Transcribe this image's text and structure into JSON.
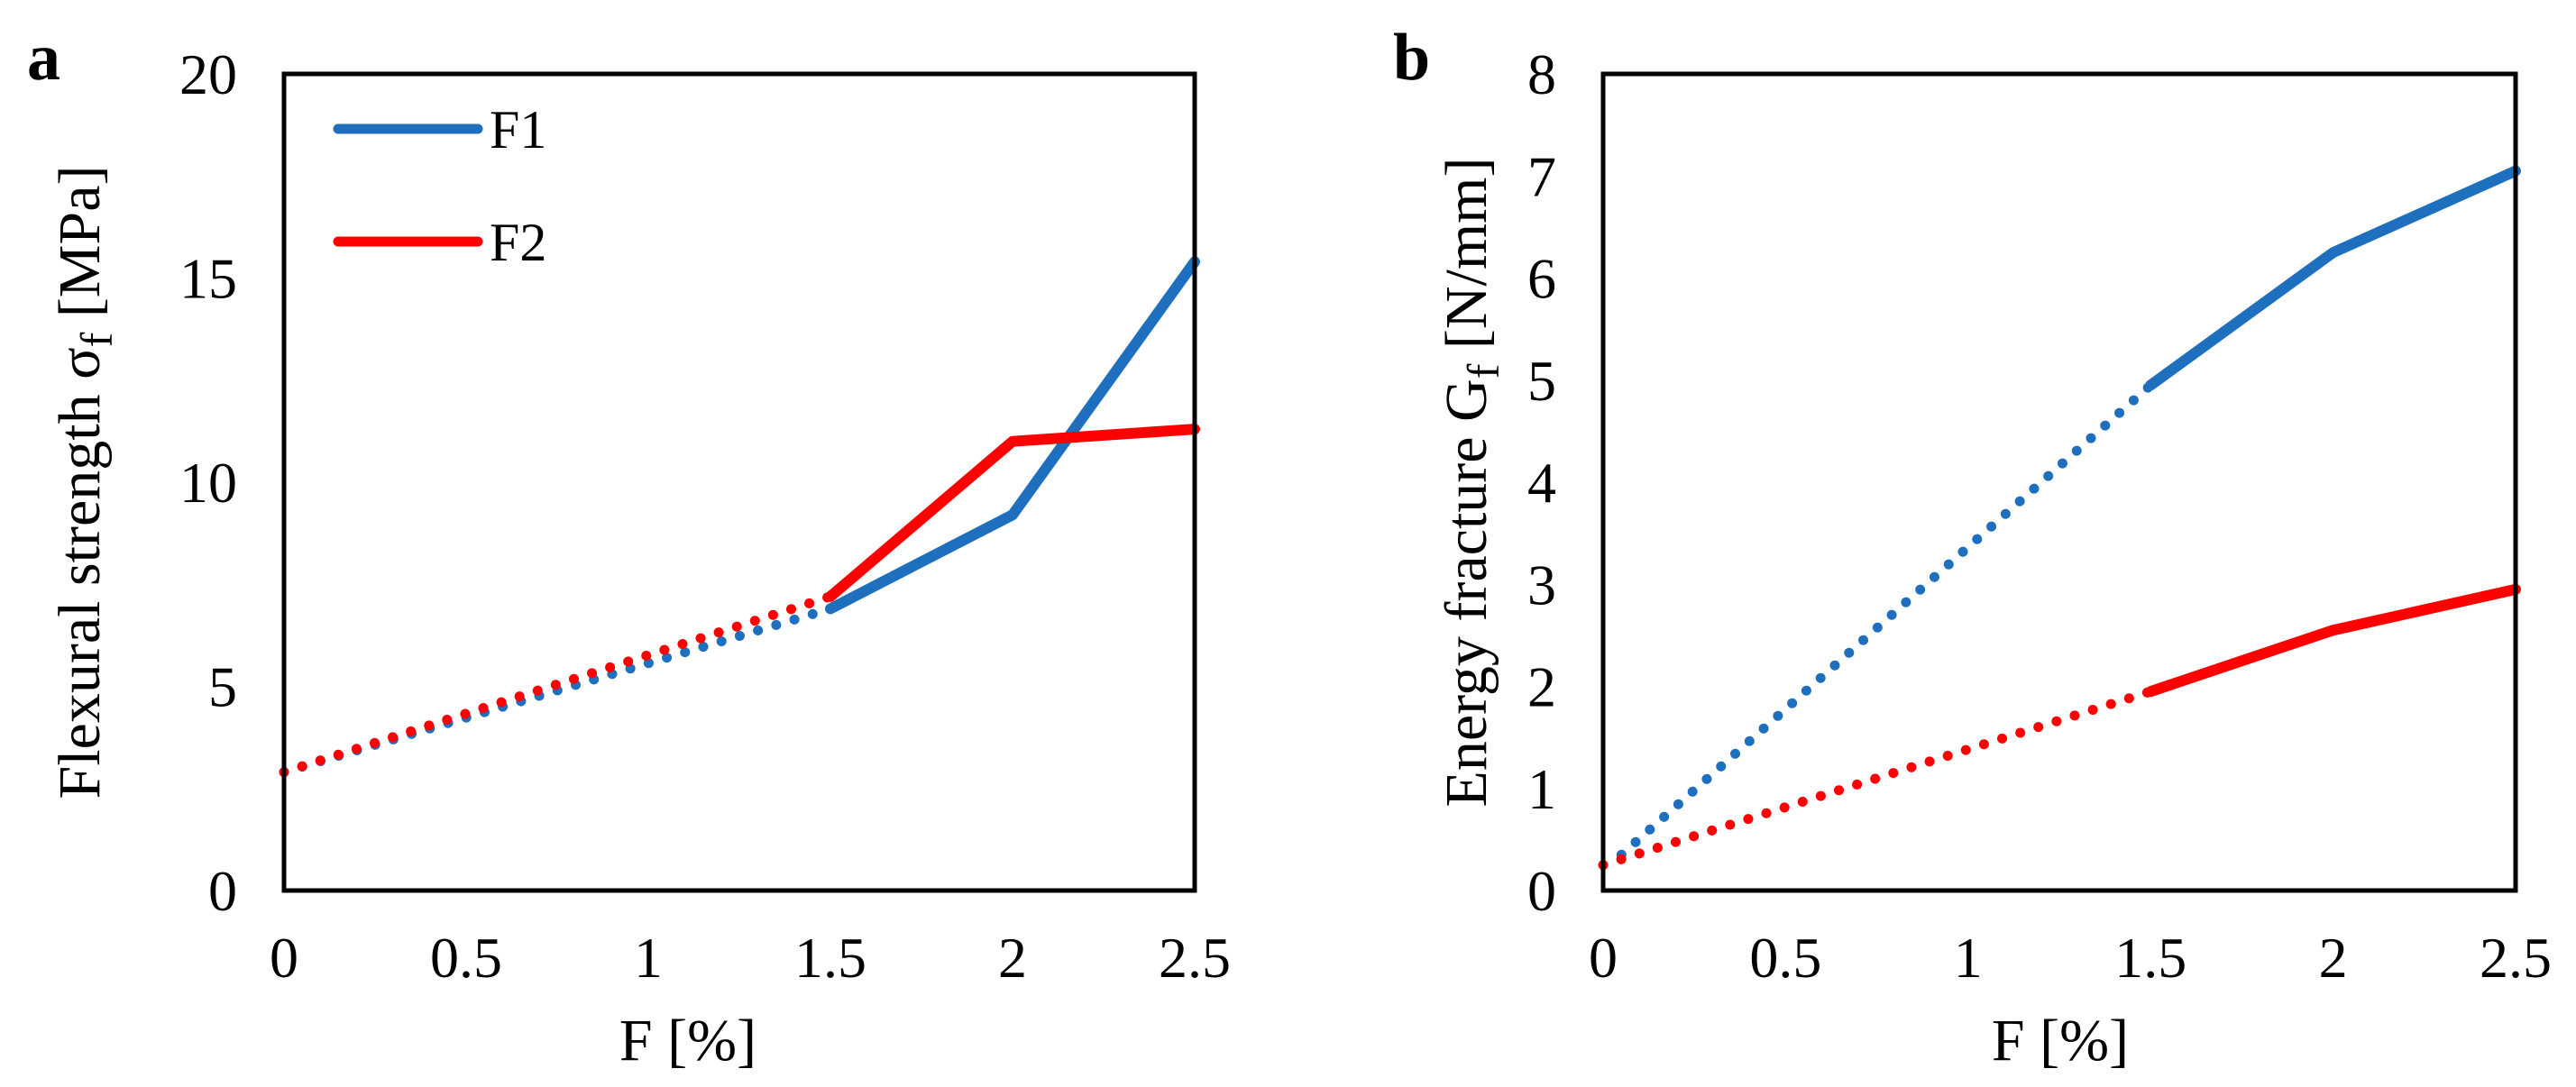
{
  "chart_data": [
    {
      "type": "line",
      "panel_label": "a",
      "xlabel": "F [%]",
      "ylabel": {
        "main": "Flexural strength σ",
        "sub": "f",
        "unit": " [MPa]"
      },
      "xlim": [
        0,
        2.5
      ],
      "ylim": [
        0,
        20
      ],
      "xticks": [
        "0",
        "0.5",
        "1",
        "1.5",
        "2",
        "2.5"
      ],
      "yticks": [
        "0",
        "5",
        "10",
        "15",
        "20"
      ],
      "legend": {
        "position": "top-left",
        "entries": [
          "F1",
          "F2"
        ]
      },
      "series": [
        {
          "name": "F1",
          "color": "#1f6fbf",
          "dotted": {
            "x": [
              0,
              1.5
            ],
            "y": [
              2.9,
              6.9
            ]
          },
          "solid": {
            "x": [
              1.5,
              2,
              2.5
            ],
            "y": [
              6.9,
              9.2,
              15.4
            ]
          }
        },
        {
          "name": "F2",
          "color": "#ff0000",
          "dotted": {
            "x": [
              0,
              1.5
            ],
            "y": [
              2.9,
              7.2
            ]
          },
          "solid": {
            "x": [
              1.5,
              2,
              2.5
            ],
            "y": [
              7.2,
              11.0,
              11.3
            ]
          }
        }
      ]
    },
    {
      "type": "line",
      "panel_label": "b",
      "xlabel": "F [%]",
      "ylabel": {
        "main": "Energy fracture G",
        "sub": "f",
        "unit": " [N/mm]"
      },
      "xlim": [
        0,
        2.5
      ],
      "ylim": [
        0,
        8
      ],
      "xticks": [
        "0",
        "0.5",
        "1",
        "1.5",
        "2",
        "2.5"
      ],
      "yticks": [
        "0",
        "1",
        "2",
        "3",
        "4",
        "5",
        "6",
        "7",
        "8"
      ],
      "legend": null,
      "series": [
        {
          "name": "F1",
          "color": "#1f6fbf",
          "dotted": {
            "x": [
              0.05,
              1.5
            ],
            "y": [
              0.35,
              4.95
            ]
          },
          "solid": {
            "x": [
              1.5,
              2,
              2.5
            ],
            "y": [
              4.95,
              6.25,
              7.05
            ]
          }
        },
        {
          "name": "F2",
          "color": "#ff0000",
          "dotted": {
            "x": [
              0,
              1.5
            ],
            "y": [
              0.25,
              1.95
            ]
          },
          "solid": {
            "x": [
              1.5,
              2,
              2.5
            ],
            "y": [
              1.95,
              2.55,
              2.95
            ]
          }
        }
      ]
    }
  ]
}
